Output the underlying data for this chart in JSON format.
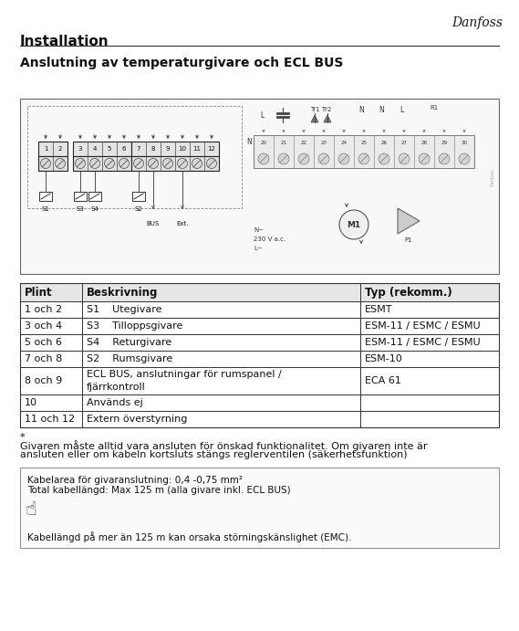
{
  "title_main": "Installation",
  "title_sub": "Anslutning av temperaturgivare och ECL BUS",
  "danfoss_logo": "Danfoss",
  "table_headers": [
    "Plint",
    "Beskrivning",
    "Typ (rekomm.)"
  ],
  "table_rows": [
    [
      "1 och 2",
      "S1    Utegivare",
      "ESMT"
    ],
    [
      "3 och 4",
      "S3    Tilloppsgivare",
      "ESM-11 / ESMC / ESMU"
    ],
    [
      "5 och 6",
      "S4    Returgivare",
      "ESM-11 / ESMC / ESMU"
    ],
    [
      "7 och 8",
      "S2    Rumsgivare",
      "ESM-10"
    ],
    [
      "8 och 9",
      "ECL BUS, anslutningar för rumspanel /\nfjärrkontroll",
      "ECA 61"
    ],
    [
      "10",
      "Används ej",
      ""
    ],
    [
      "11 och 12",
      "Extern överstyrning",
      ""
    ]
  ],
  "footnote_star": "*",
  "footnote_text_1": "Givaren måste alltid vara ansluten för önskad funktionalitet. Om givaren inte är",
  "footnote_text_2": "ansluten eller om kabeln kortsluts stängs reglerventilen (säkerhetsfunktion) ",
  "box_line1": "Kabelarea för givaranslutning: 0,4 -0,75 mm²",
  "box_line2": "Total kabellängd: Max 125 m (alla givare inkl. ECL BUS)",
  "box_line3": "Kabellängd på mer än 125 m kan orsaka störningskänslighet (EMC).",
  "bg_color": "#ffffff"
}
